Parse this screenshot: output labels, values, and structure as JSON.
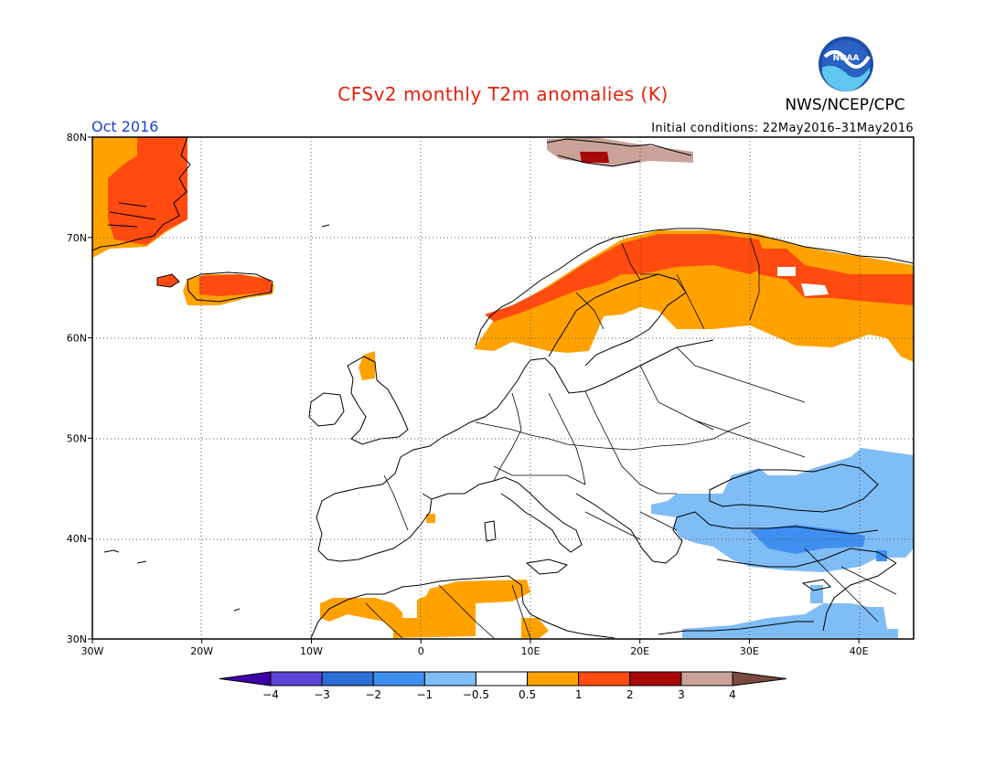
{
  "header": {
    "title": "CFSv2 monthly T2m anomalies (K)",
    "org": "NWS/NCEP/CPC",
    "logo_text": "NOAA",
    "month": "Oct 2016",
    "initial_conditions": "Initial conditions: 22May2016–31May2016"
  },
  "map_data": {
    "type": "heatmap",
    "lon_range": [
      -30,
      45
    ],
    "lat_range": [
      30,
      80
    ],
    "lon_ticks": [
      {
        "value": -30,
        "label": "30W"
      },
      {
        "value": -20,
        "label": "20W"
      },
      {
        "value": -10,
        "label": "10W"
      },
      {
        "value": 0,
        "label": "0"
      },
      {
        "value": 10,
        "label": "10E"
      },
      {
        "value": 20,
        "label": "20E"
      },
      {
        "value": 30,
        "label": "30E"
      },
      {
        "value": 40,
        "label": "40E"
      }
    ],
    "lat_ticks": [
      {
        "value": 30,
        "label": "30N"
      },
      {
        "value": 40,
        "label": "40N"
      },
      {
        "value": 50,
        "label": "50N"
      },
      {
        "value": 60,
        "label": "60N"
      },
      {
        "value": 70,
        "label": "70N"
      },
      {
        "value": 80,
        "label": "80N"
      }
    ],
    "grid": "dotted every 10 degrees"
  },
  "colorbar": {
    "labels": [
      "−4",
      "−3",
      "−2",
      "−1",
      "−0.5",
      "0.5",
      "1",
      "2",
      "3",
      "4"
    ],
    "colors": [
      "#3d00a8",
      "#5c45d4",
      "#2d6ed6",
      "#3f8ff0",
      "#7fbdf6",
      "#ffffff",
      "#ffa200",
      "#ff4a10",
      "#a80808",
      "#c9a39a",
      "#7a4a3c"
    ]
  }
}
